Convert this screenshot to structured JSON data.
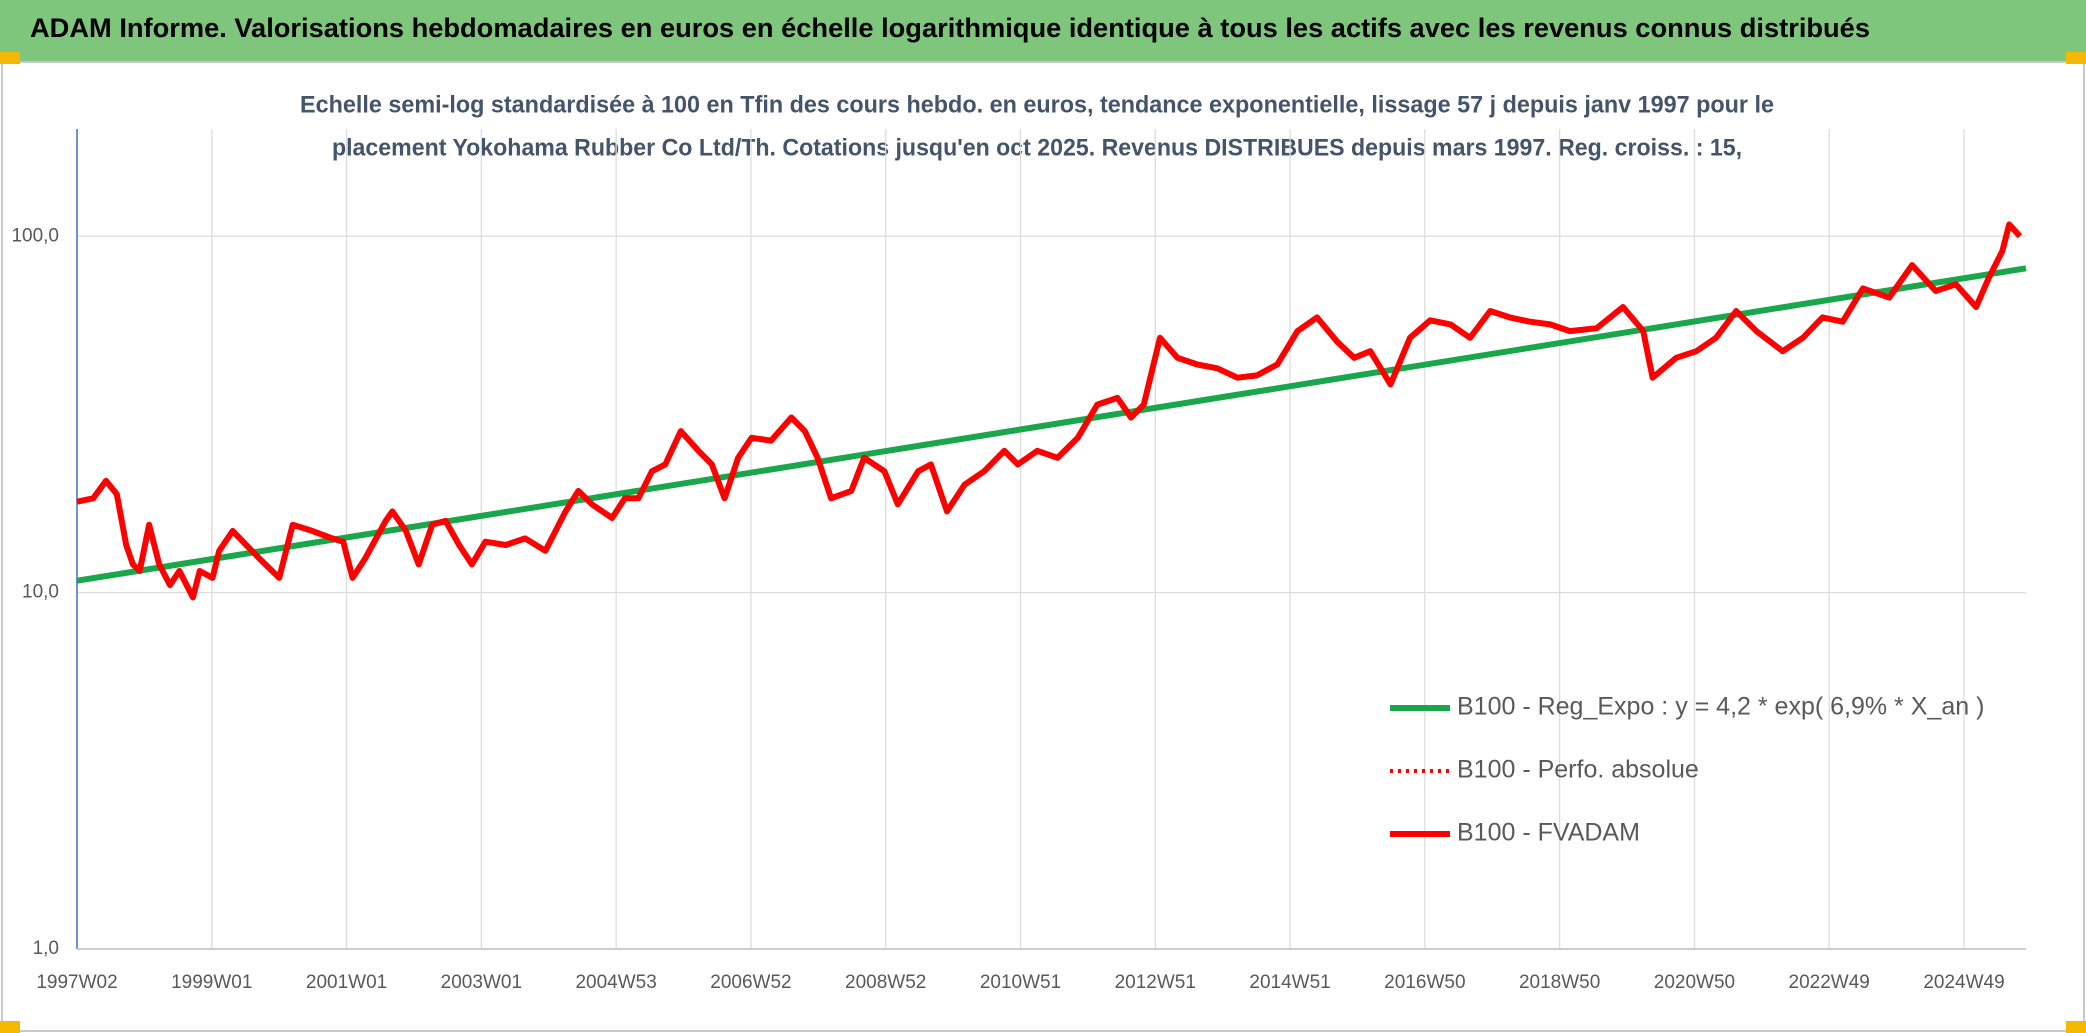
{
  "chart_data": {
    "type": "line",
    "header": "ADAM Informe. Valorisations hebdomadaires en euros en échelle logarithmique identique à tous les actifs avec les revenus connus distribués",
    "title": [
      "Echelle semi-log standardisée à 100 en Tfin des cours hebdo. en euros, tendance exponentielle, lissage 57 j depuis janv 1997 pour le",
      "placement Yokohama Rubber Co Ltd/Th. Cotations jusqu'en oct 2025. Revenus DISTRIBUES depuis mars 1997. Reg. croiss. : 15,"
    ],
    "log_y": true,
    "grid": true,
    "legend": "right",
    "xlim": [
      1997,
      2025.92
    ],
    "xticks": [
      {
        "value": 1997,
        "label": "1997W02"
      },
      {
        "value": 1999,
        "label": "1999W01"
      },
      {
        "value": 2001,
        "label": "2001W01"
      },
      {
        "value": 2003,
        "label": "2003W01"
      },
      {
        "value": 2005,
        "label": "2004W53"
      },
      {
        "value": 2007,
        "label": "2006W52"
      },
      {
        "value": 2009,
        "label": "2008W52"
      },
      {
        "value": 2011,
        "label": "2010W51"
      },
      {
        "value": 2013,
        "label": "2012W51"
      },
      {
        "value": 2015,
        "label": "2014W51"
      },
      {
        "value": 2017,
        "label": "2016W50"
      },
      {
        "value": 2019,
        "label": "2018W50"
      },
      {
        "value": 2021,
        "label": "2020W50"
      },
      {
        "value": 2023,
        "label": "2022W49"
      },
      {
        "value": 2025,
        "label": "2024W49"
      }
    ],
    "ylim": [
      1,
      200
    ],
    "yticks": [
      {
        "value": 1,
        "label": "1,0"
      },
      {
        "value": 10,
        "label": "10,0"
      },
      {
        "value": 100,
        "label": "100,0"
      }
    ],
    "series": [
      {
        "name": "B100 - Reg_Expo : y = 4,2 * exp( 6,9% *  X_an )",
        "color": "#1aa64a",
        "style": "solid",
        "x": [
          1997,
          2025.92
        ],
        "values": [
          10.8,
          81.3
        ]
      },
      {
        "name": "B100 - Perfo. absolue",
        "color": "#ff0000",
        "style": "dotted",
        "x": [
          1997.0,
          1997.24,
          1997.43,
          1997.59,
          1997.73,
          1997.83,
          1997.93,
          1998.07,
          1998.22,
          1998.38,
          1998.52,
          1998.72,
          1998.82,
          1999.01,
          1999.11,
          1999.31,
          1999.51,
          1999.7,
          2000.0,
          2000.2,
          2000.49,
          2000.79,
          2000.95,
          2001.09,
          2001.28,
          2001.58,
          2001.68,
          2001.88,
          2002.07,
          2002.27,
          2002.47,
          2002.67,
          2002.86,
          2003.06,
          2003.36,
          2003.65,
          2003.95,
          2004.25,
          2004.44,
          2004.64,
          2004.94,
          2005.13,
          2005.33,
          2005.53,
          2005.73,
          2005.96,
          2006.22,
          2006.42,
          2006.61,
          2006.81,
          2007.01,
          2007.3,
          2007.6,
          2007.8,
          2007.99,
          2008.19,
          2008.49,
          2008.68,
          2008.98,
          2009.18,
          2009.48,
          2009.67,
          2009.91,
          2010.17,
          2010.46,
          2010.76,
          2010.96,
          2011.25,
          2011.55,
          2011.85,
          2012.14,
          2012.44,
          2012.64,
          2012.83,
          2013.07,
          2013.33,
          2013.62,
          2013.92,
          2014.22,
          2014.51,
          2014.81,
          2015.11,
          2015.4,
          2015.7,
          2015.95,
          2016.19,
          2016.49,
          2016.78,
          2017.08,
          2017.38,
          2017.67,
          2017.97,
          2018.26,
          2018.56,
          2018.86,
          2019.15,
          2019.55,
          2019.94,
          2020.24,
          2020.38,
          2020.73,
          2021.03,
          2021.32,
          2021.62,
          2021.92,
          2022.31,
          2022.61,
          2022.9,
          2023.2,
          2023.5,
          2023.89,
          2024.23,
          2024.58,
          2024.88,
          2025.18,
          2025.37,
          2025.57,
          2025.67,
          2025.83
        ],
        "values": [
          18.0,
          18.4,
          20.6,
          18.9,
          13.6,
          12.0,
          11.5,
          15.5,
          12.0,
          10.5,
          11.5,
          9.7,
          11.5,
          11.0,
          13.1,
          14.9,
          13.6,
          12.5,
          11.0,
          15.5,
          14.9,
          14.2,
          13.9,
          11.0,
          12.5,
          15.9,
          16.9,
          14.9,
          12.0,
          15.5,
          15.9,
          13.6,
          12.0,
          13.9,
          13.6,
          14.2,
          13.1,
          16.9,
          19.3,
          17.7,
          16.2,
          18.4,
          18.4,
          21.9,
          22.9,
          28.4,
          25.0,
          22.9,
          18.4,
          23.9,
          27.2,
          26.7,
          31.0,
          28.4,
          23.9,
          18.4,
          19.3,
          23.9,
          21.9,
          17.7,
          21.9,
          22.9,
          16.9,
          20.1,
          21.9,
          25.0,
          22.9,
          25.0,
          23.9,
          27.2,
          33.7,
          35.2,
          31.0,
          33.7,
          51.9,
          45.6,
          43.7,
          42.6,
          40.1,
          40.7,
          43.7,
          54.2,
          59.2,
          50.6,
          45.6,
          47.6,
          38.4,
          51.9,
          58.1,
          56.6,
          51.9,
          61.7,
          59.2,
          57.6,
          56.6,
          54.2,
          55.2,
          63.3,
          54.2,
          40.1,
          45.6,
          47.6,
          51.9,
          61.7,
          54.2,
          47.6,
          51.9,
          59.2,
          57.6,
          71.4,
          67.3,
          83,
          70.2,
          73.3,
          63.3,
          76.5,
          91,
          108,
          100
        ]
      },
      {
        "name": "B100 - FVADAM",
        "color": "#ff0000",
        "style": "solid",
        "x": [
          1997.0,
          1997.24,
          1997.43,
          1997.59,
          1997.73,
          1997.83,
          1997.93,
          1998.07,
          1998.22,
          1998.38,
          1998.52,
          1998.72,
          1998.82,
          1999.01,
          1999.11,
          1999.31,
          1999.51,
          1999.7,
          2000.0,
          2000.2,
          2000.49,
          2000.79,
          2000.95,
          2001.09,
          2001.28,
          2001.58,
          2001.68,
          2001.88,
          2002.07,
          2002.27,
          2002.47,
          2002.67,
          2002.86,
          2003.06,
          2003.36,
          2003.65,
          2003.95,
          2004.25,
          2004.44,
          2004.64,
          2004.94,
          2005.13,
          2005.33,
          2005.53,
          2005.73,
          2005.96,
          2006.22,
          2006.42,
          2006.61,
          2006.81,
          2007.01,
          2007.3,
          2007.6,
          2007.8,
          2007.99,
          2008.19,
          2008.49,
          2008.68,
          2008.98,
          2009.18,
          2009.48,
          2009.67,
          2009.91,
          2010.17,
          2010.46,
          2010.76,
          2010.96,
          2011.25,
          2011.55,
          2011.85,
          2012.14,
          2012.44,
          2012.64,
          2012.83,
          2013.07,
          2013.33,
          2013.62,
          2013.92,
          2014.22,
          2014.51,
          2014.81,
          2015.11,
          2015.4,
          2015.7,
          2015.95,
          2016.19,
          2016.49,
          2016.78,
          2017.08,
          2017.38,
          2017.67,
          2017.97,
          2018.26,
          2018.56,
          2018.86,
          2019.15,
          2019.55,
          2019.94,
          2020.24,
          2020.38,
          2020.73,
          2021.03,
          2021.32,
          2021.62,
          2021.92,
          2022.31,
          2022.61,
          2022.9,
          2023.2,
          2023.5,
          2023.89,
          2024.23,
          2024.58,
          2024.88,
          2025.18,
          2025.37,
          2025.57,
          2025.67,
          2025.83
        ],
        "values": [
          18.0,
          18.4,
          20.6,
          18.9,
          13.6,
          12.0,
          11.5,
          15.5,
          12.0,
          10.5,
          11.5,
          9.7,
          11.5,
          11.0,
          13.1,
          14.9,
          13.6,
          12.5,
          11.0,
          15.5,
          14.9,
          14.2,
          13.9,
          11.0,
          12.5,
          15.9,
          16.9,
          14.9,
          12.0,
          15.5,
          15.9,
          13.6,
          12.0,
          13.9,
          13.6,
          14.2,
          13.1,
          16.9,
          19.3,
          17.7,
          16.2,
          18.4,
          18.4,
          21.9,
          22.9,
          28.4,
          25.0,
          22.9,
          18.4,
          23.9,
          27.2,
          26.7,
          31.0,
          28.4,
          23.9,
          18.4,
          19.3,
          23.9,
          21.9,
          17.7,
          21.9,
          22.9,
          16.9,
          20.1,
          21.9,
          25.0,
          22.9,
          25.0,
          23.9,
          27.2,
          33.7,
          35.2,
          31.0,
          33.7,
          51.9,
          45.6,
          43.7,
          42.6,
          40.1,
          40.7,
          43.7,
          54.2,
          59.2,
          50.6,
          45.6,
          47.6,
          38.4,
          51.9,
          58.1,
          56.6,
          51.9,
          61.7,
          59.2,
          57.6,
          56.6,
          54.2,
          55.2,
          63.3,
          54.2,
          40.1,
          45.6,
          47.6,
          51.9,
          61.7,
          54.2,
          47.6,
          51.9,
          59.2,
          57.6,
          71.4,
          67.3,
          83,
          70.2,
          73.3,
          63.3,
          76.5,
          91,
          108,
          100
        ]
      }
    ]
  }
}
